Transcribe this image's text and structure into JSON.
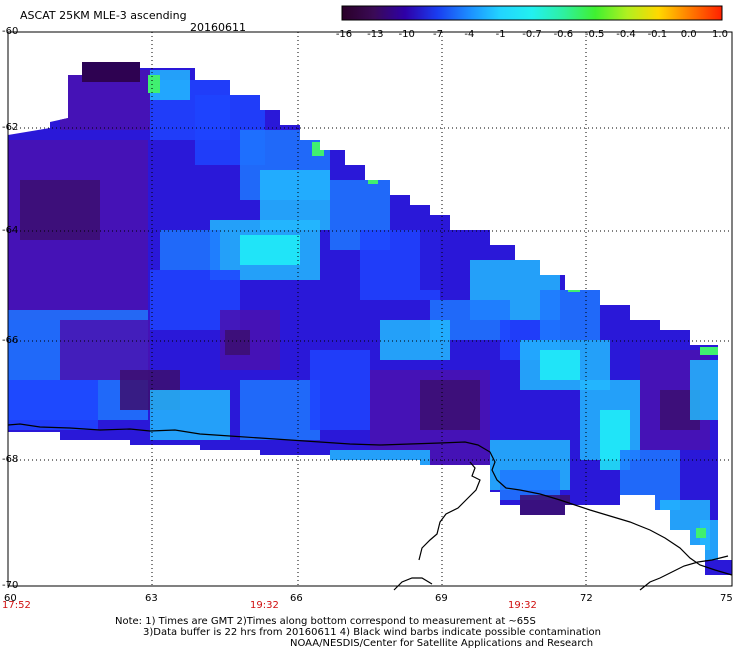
{
  "header": {
    "product": "ASCAT 25KM MLE-3 ascending",
    "date": "20160611"
  },
  "colorbar": {
    "labels": [
      "-16",
      "-13",
      "-10",
      "-7",
      "-4",
      "-1",
      "-0.7",
      "-0.6",
      "-0.5",
      "-0.4",
      "-0.1",
      "0.0",
      "1.0"
    ],
    "colors": [
      "#2a0028",
      "#3a0a55",
      "#2e00a8",
      "#1a3cf0",
      "#1c8cff",
      "#22d4ff",
      "#22f0f0",
      "#2ef0a0",
      "#40f030",
      "#b0f020",
      "#ffd800",
      "#ff7a00",
      "#ff2000"
    ]
  },
  "axes": {
    "lat_ticks": [
      "-60",
      "-62",
      "-64",
      "-66",
      "-68",
      "-70"
    ],
    "lon_ticks": [
      "60",
      "63",
      "66",
      "69",
      "72",
      "75"
    ],
    "time_labels": [
      "17:52",
      "19:32",
      "19:32"
    ]
  },
  "notes": [
    "Note: 1) Times are GMT 2)Times along bottom correspond to measurement at ~65S",
    "3)Data buffer is 22 hrs from 20160611 4) Black wind barbs indicate possible contamination",
    "NOAA/NESDIS/Center for Satellite Applications and Research"
  ],
  "palette": {
    "deep_purple": "#3c0f70",
    "purple": "#4a12b0",
    "indigo": "#2a18d8",
    "blue": "#1f44ff",
    "mid_blue": "#1e78ff",
    "light_blue": "#23b8ff",
    "cyan": "#20f0f8",
    "green": "#40f070"
  }
}
